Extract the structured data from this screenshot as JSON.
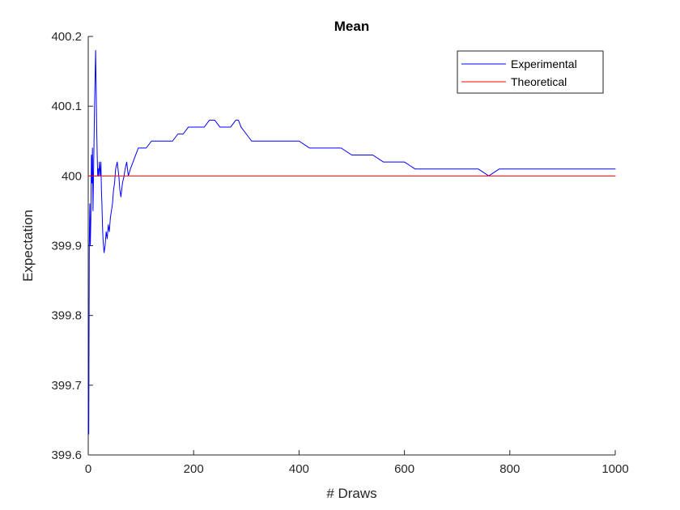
{
  "chart_data": {
    "type": "line",
    "title": "Mean",
    "xlabel": "# Draws",
    "ylabel": "Expectation",
    "xlim": [
      0,
      1000
    ],
    "ylim": [
      399.6,
      400.2
    ],
    "xticks": [
      0,
      200,
      400,
      600,
      800,
      1000
    ],
    "xtick_labels": [
      "0",
      "200",
      "400",
      "600",
      "800",
      "1000"
    ],
    "yticks": [
      399.6,
      399.7,
      399.8,
      399.9,
      400,
      400.1,
      400.2
    ],
    "ytick_labels": [
      "399.6",
      "399.7",
      "399.8",
      "399.9",
      "400",
      "400.1",
      "400.2"
    ],
    "grid": false,
    "legend": {
      "position": "top-right",
      "entries": [
        "Experimental",
        "Theoretical"
      ]
    },
    "series": [
      {
        "name": "Experimental",
        "color": "#0000ff",
        "x": [
          1,
          2,
          3,
          4,
          5,
          6,
          7,
          8,
          9,
          10,
          11,
          12,
          13,
          14,
          15,
          16,
          17,
          18,
          19,
          20,
          21,
          22,
          23,
          24,
          25,
          26,
          27,
          28,
          30,
          32,
          34,
          36,
          38,
          40,
          42,
          44,
          46,
          48,
          50,
          52,
          55,
          58,
          60,
          62,
          65,
          68,
          70,
          73,
          76,
          80,
          85,
          90,
          95,
          100,
          110,
          120,
          130,
          140,
          150,
          160,
          170,
          180,
          190,
          200,
          210,
          220,
          230,
          240,
          250,
          260,
          270,
          280,
          285,
          290,
          300,
          310,
          320,
          340,
          360,
          380,
          400,
          420,
          440,
          460,
          480,
          500,
          520,
          540,
          560,
          580,
          600,
          620,
          640,
          660,
          680,
          700,
          720,
          740,
          760,
          780,
          800,
          820,
          840,
          860,
          880,
          900,
          920,
          940,
          960,
          980,
          1000
        ],
        "y": [
          399.63,
          399.9,
          399.96,
          399.9,
          399.94,
          400.03,
          399.99,
          400.04,
          399.95,
          400.0,
          400.05,
          400.1,
          400.14,
          400.18,
          400.13,
          400.07,
          400.03,
          400.0,
          400.01,
          400.0,
          400.02,
          400.01,
          400.0,
          400.02,
          399.98,
          399.96,
          399.93,
          399.91,
          399.89,
          399.9,
          399.92,
          399.91,
          399.93,
          399.92,
          399.94,
          399.95,
          399.96,
          399.98,
          399.99,
          400.01,
          400.02,
          400.0,
          399.98,
          399.97,
          399.99,
          400.0,
          400.01,
          400.02,
          400.0,
          400.01,
          400.02,
          400.03,
          400.04,
          400.04,
          400.04,
          400.05,
          400.05,
          400.05,
          400.05,
          400.05,
          400.06,
          400.06,
          400.07,
          400.07,
          400.07,
          400.07,
          400.08,
          400.08,
          400.07,
          400.07,
          400.07,
          400.08,
          400.08,
          400.07,
          400.06,
          400.05,
          400.05,
          400.05,
          400.05,
          400.05,
          400.05,
          400.04,
          400.04,
          400.04,
          400.04,
          400.03,
          400.03,
          400.03,
          400.02,
          400.02,
          400.02,
          400.01,
          400.01,
          400.01,
          400.01,
          400.01,
          400.01,
          400.01,
          400.0,
          400.01,
          400.01,
          400.01,
          400.01,
          400.01,
          400.01,
          400.01,
          400.01,
          400.01,
          400.01,
          400.01,
          400.01
        ]
      },
      {
        "name": "Theoretical",
        "color": "#ff0000",
        "x": [
          0,
          1000
        ],
        "y": [
          400,
          400
        ]
      }
    ]
  }
}
